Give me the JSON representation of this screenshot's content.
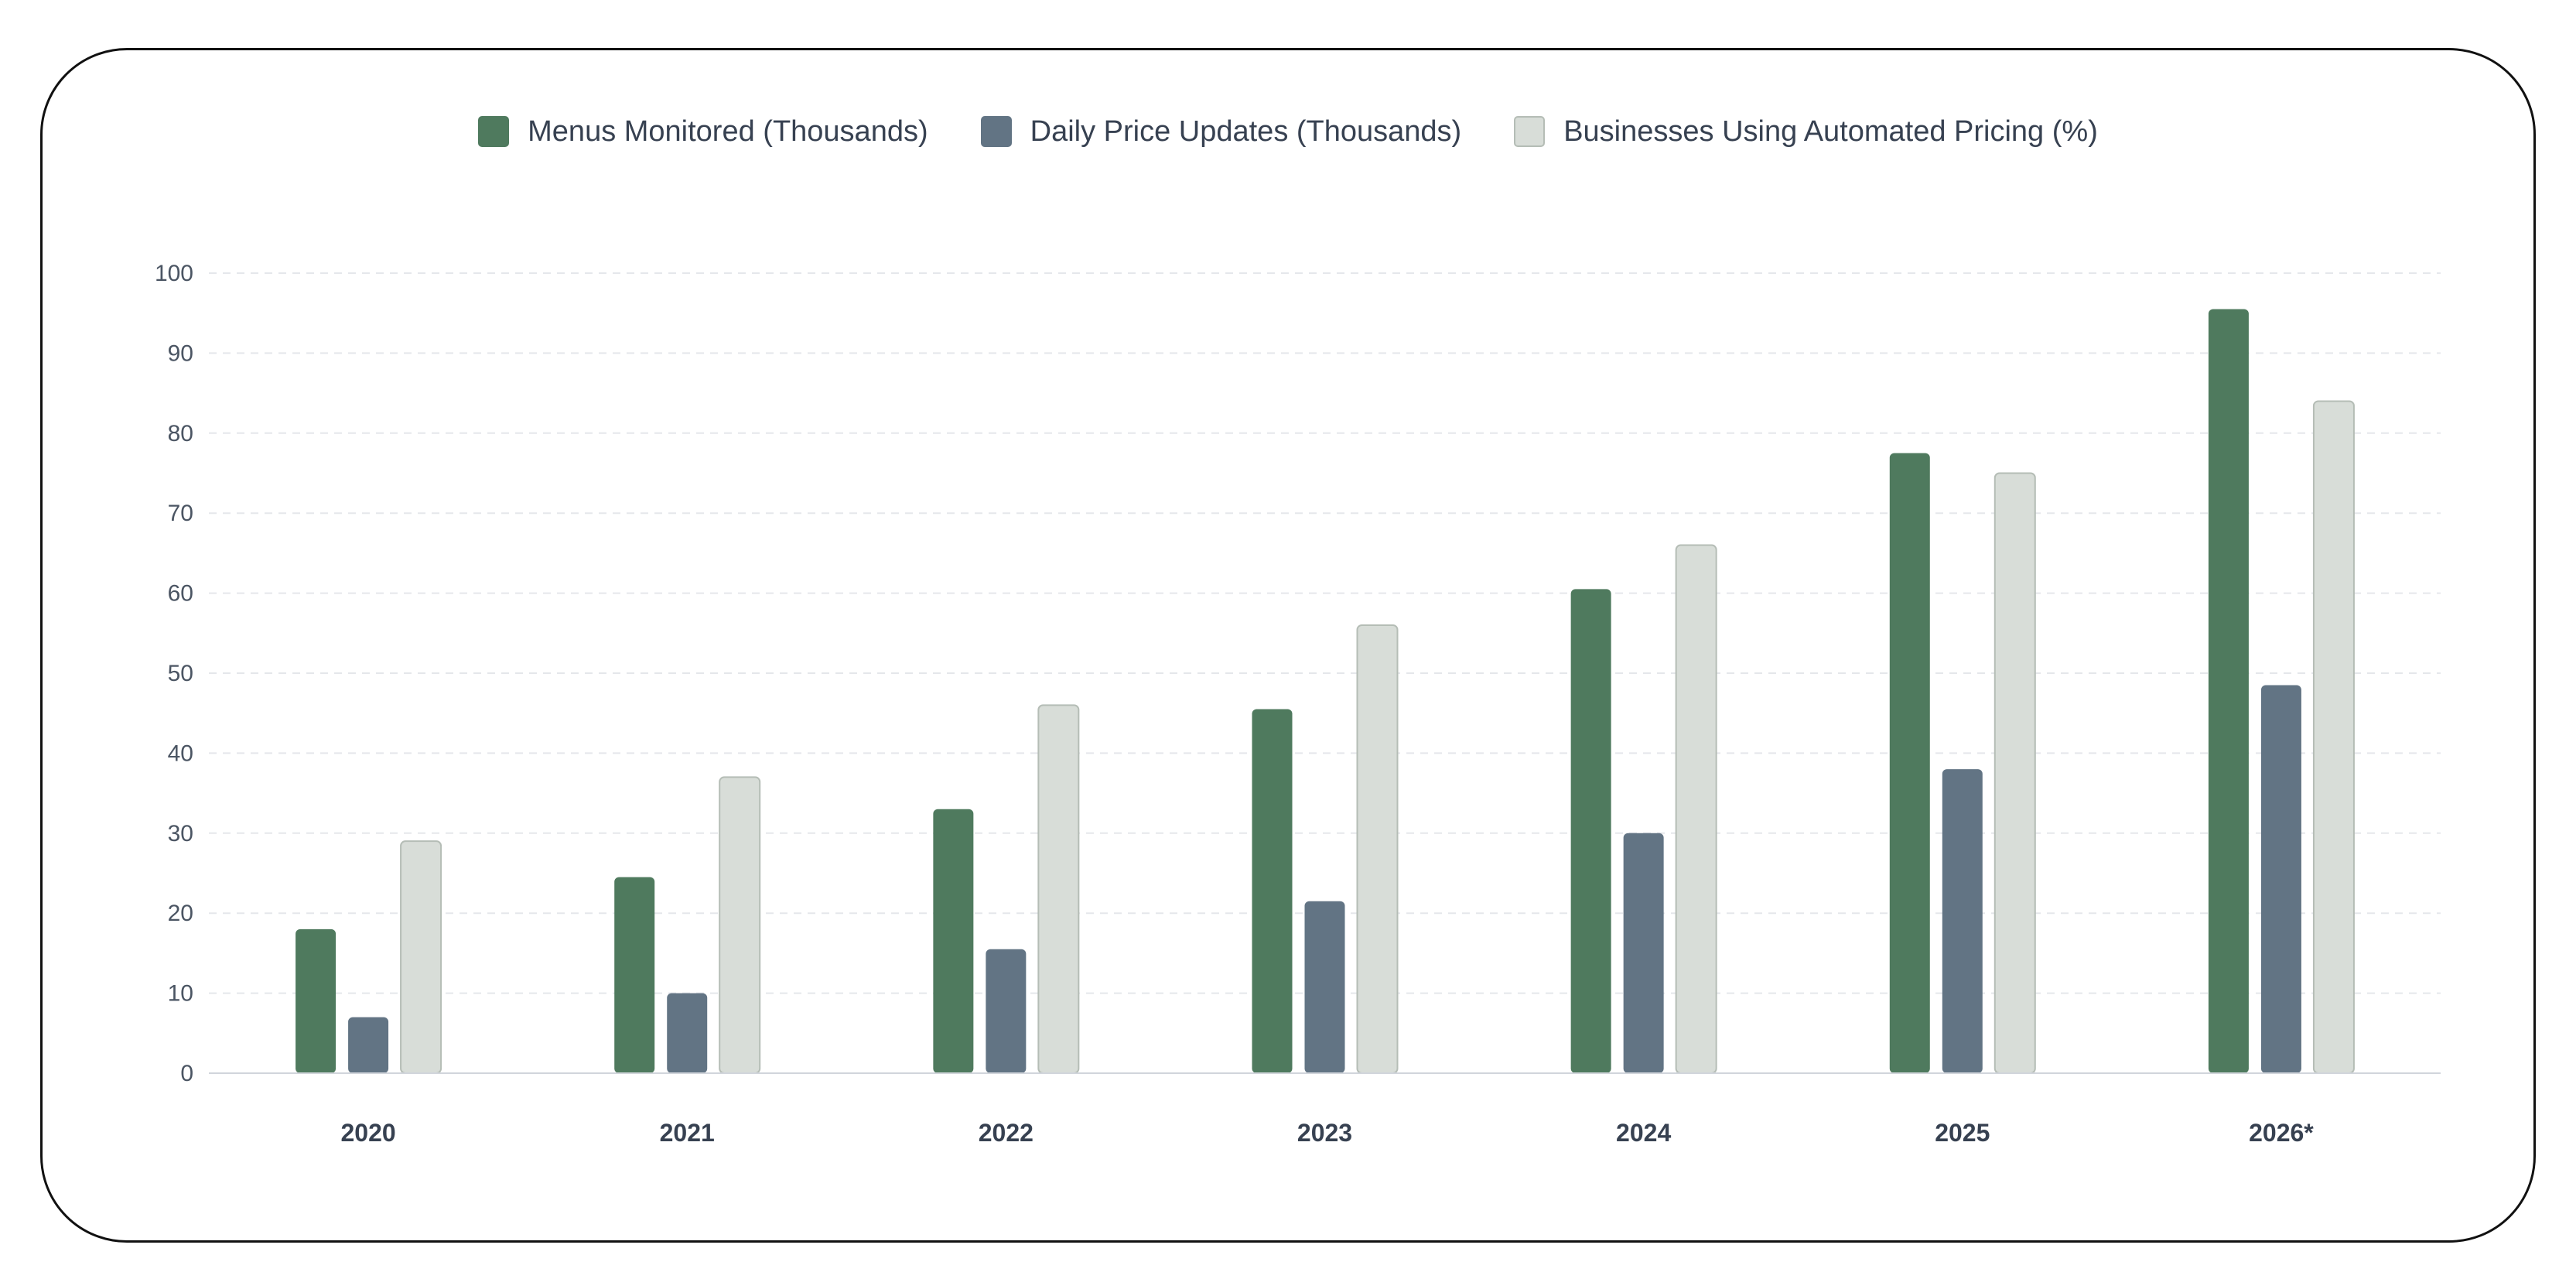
{
  "chart_data": {
    "type": "bar",
    "categories": [
      "2020",
      "2021",
      "2022",
      "2023",
      "2024",
      "2025",
      "2026*"
    ],
    "series": [
      {
        "name": "Menus Monitored (Thousands)",
        "color": "#4f7a5e",
        "values": [
          18,
          24.5,
          33,
          45.5,
          60.5,
          77.5,
          95.5
        ]
      },
      {
        "name": "Daily Price Updates (Thousands)",
        "color": "#627484",
        "values": [
          7,
          10,
          15.5,
          21.5,
          30,
          38,
          48.5
        ]
      },
      {
        "name": "Businesses Using Automated Pricing (%)",
        "color": "#d8ddd8",
        "values": [
          29,
          37,
          46,
          56,
          66,
          75,
          84
        ]
      }
    ],
    "yticks": [
      "0",
      "10",
      "20",
      "30",
      "40",
      "50",
      "60",
      "70",
      "80",
      "90",
      "100"
    ],
    "ylim": [
      0,
      100
    ],
    "grid": true,
    "legend_position": "top-center",
    "title": "",
    "xlabel": "",
    "ylabel": ""
  }
}
